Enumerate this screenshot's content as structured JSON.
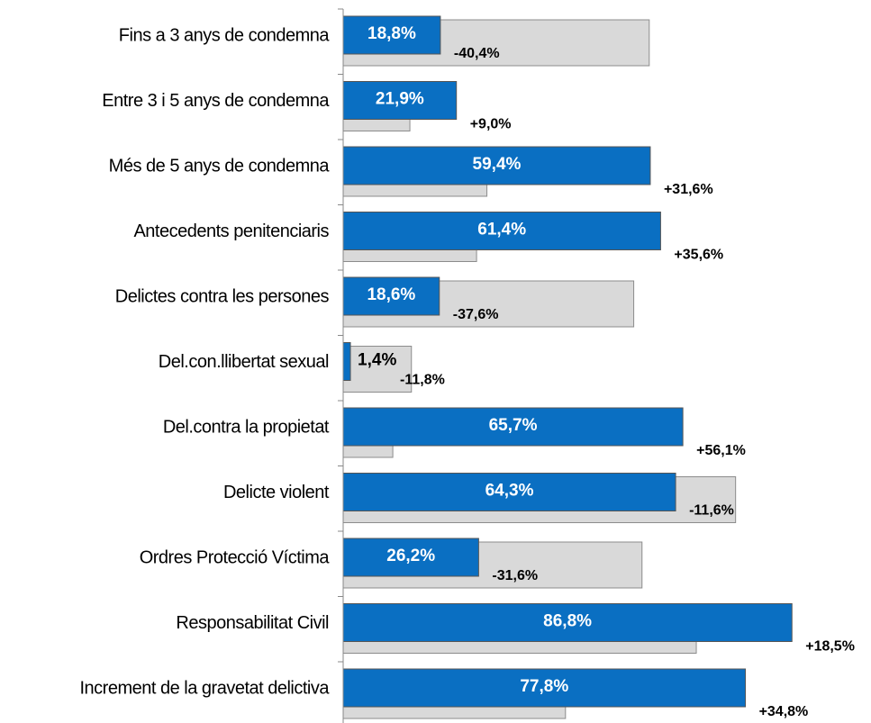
{
  "chart_data": {
    "type": "hbar",
    "categories": [
      "Fins a 3 anys de condemna",
      "Entre 3 i 5 anys de condemna",
      "Més de 5 anys de condemna",
      "Antecedents penitenciaris",
      "Delictes contra les persones",
      "Del.con.llibertat sexual",
      "Del.contra la propietat",
      "Delicte violent",
      "Ordres Protecció Víctima",
      "Responsabilitat Civil",
      "Increment de la gravetat delictiva"
    ],
    "xlim": [
      0,
      100
    ],
    "series": [
      {
        "color": "#0a6fc2",
        "values": [
          18.8,
          21.9,
          59.4,
          61.4,
          18.6,
          1.4,
          65.7,
          64.3,
          26.2,
          86.8,
          77.8
        ],
        "value_labels": [
          "18,8%",
          "21,9%",
          "59,4%",
          "61,4%",
          "18,6%",
          "1,4%",
          "65,7%",
          "64,3%",
          "26,2%",
          "86,8%",
          "77,8%"
        ]
      },
      {
        "color": "#d9d9d9",
        "values": [
          59.2,
          12.9,
          27.8,
          25.8,
          56.2,
          13.2,
          9.6,
          75.9,
          57.8,
          68.3,
          43.0
        ]
      }
    ],
    "differences": [
      -40.4,
      9.0,
      31.6,
      35.6,
      -37.6,
      -11.8,
      56.1,
      -11.6,
      -31.6,
      18.5,
      34.8
    ],
    "difference_labels": [
      "-40,4%",
      "+9,0%",
      "+31,6%",
      "+35,6%",
      "-37,6%",
      "-11,8%",
      "+56,1%",
      "-11,6%",
      "-31,6%",
      "+18,5%",
      "+34,8%"
    ]
  }
}
